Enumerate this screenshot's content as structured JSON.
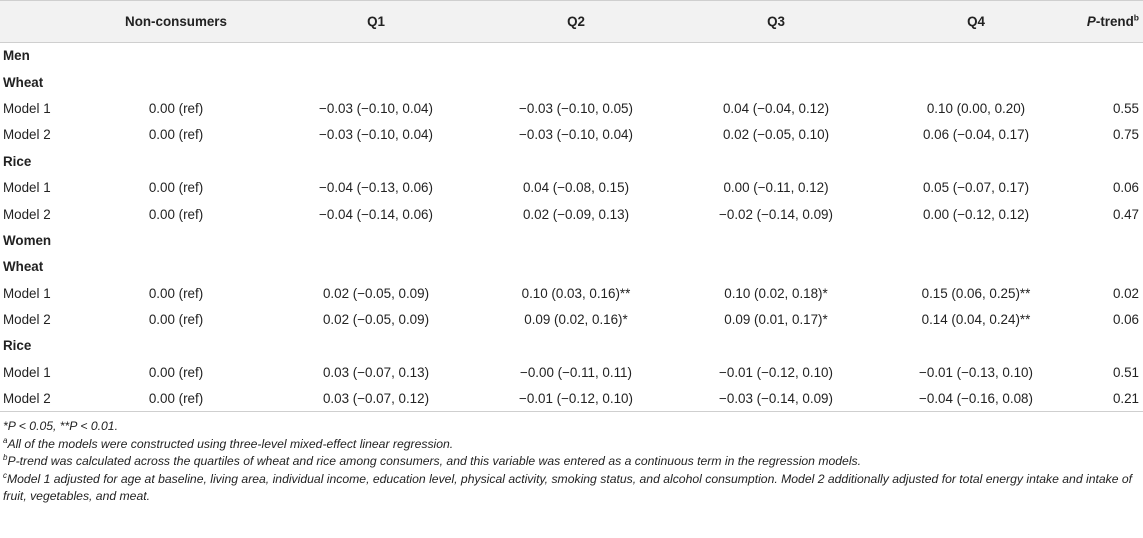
{
  "header": {
    "col0": "",
    "non_consumers": "Non-consumers",
    "q1": "Q1",
    "q2": "Q2",
    "q3": "Q3",
    "q4": "Q4",
    "ptrend_italic": "P",
    "ptrend_rest": "-trend",
    "ptrend_sup": "b"
  },
  "rows": {
    "men": "Men",
    "men_wheat": "Wheat",
    "men_wheat_m1": [
      "Model 1",
      "0.00 (ref)",
      "−0.03 (−0.10, 0.04)",
      "−0.03 (−0.10, 0.05)",
      "0.04 (−0.04, 0.12)",
      "0.10 (0.00, 0.20)",
      "0.55"
    ],
    "men_wheat_m2": [
      "Model 2",
      "0.00 (ref)",
      "−0.03 (−0.10, 0.04)",
      "−0.03 (−0.10, 0.04)",
      "0.02 (−0.05, 0.10)",
      "0.06 (−0.04, 0.17)",
      "0.75"
    ],
    "men_rice": "Rice",
    "men_rice_m1": [
      "Model 1",
      "0.00 (ref)",
      "−0.04 (−0.13, 0.06)",
      "0.04 (−0.08, 0.15)",
      "0.00 (−0.11, 0.12)",
      "0.05 (−0.07, 0.17)",
      "0.06"
    ],
    "men_rice_m2": [
      "Model 2",
      "0.00 (ref)",
      "−0.04 (−0.14, 0.06)",
      "0.02 (−0.09, 0.13)",
      "−0.02 (−0.14, 0.09)",
      "0.00 (−0.12, 0.12)",
      "0.47"
    ],
    "women": "Women",
    "women_wheat": "Wheat",
    "women_wheat_m1": [
      "Model 1",
      "0.00 (ref)",
      "0.02 (−0.05, 0.09)",
      "0.10 (0.03, 0.16)**",
      "0.10 (0.02, 0.18)*",
      "0.15 (0.06, 0.25)**",
      "0.02"
    ],
    "women_wheat_m2": [
      "Model 2",
      "0.00 (ref)",
      "0.02 (−0.05, 0.09)",
      "0.09 (0.02, 0.16)*",
      "0.09 (0.01, 0.17)*",
      "0.14 (0.04, 0.24)**",
      "0.06"
    ],
    "women_rice": "Rice",
    "women_rice_m1": [
      "Model 1",
      "0.00 (ref)",
      "0.03 (−0.07, 0.13)",
      "−0.00 (−0.11, 0.11)",
      "−0.01 (−0.12, 0.10)",
      "−0.01 (−0.13, 0.10)",
      "0.51"
    ],
    "women_rice_m2": [
      "Model 2",
      "0.00 (ref)",
      "0.03 (−0.07, 0.12)",
      "−0.01 (−0.12, 0.10)",
      "−0.03 (−0.14, 0.09)",
      "−0.04 (−0.16, 0.08)",
      "0.21"
    ]
  },
  "notes": {
    "sig": "*P < 0.05, **P < 0.01.",
    "a_sup": "a",
    "a_text": "All of the models were constructed using three-level mixed-effect linear regression.",
    "b_sup": "b",
    "b_text": "P-trend was calculated across the quartiles of wheat and rice among consumers, and this variable was entered as a continuous term in the regression models.",
    "c_sup": "c",
    "c_text": "Model 1 adjusted for age at baseline, living area, individual income, education level, physical activity, smoking status, and alcohol consumption. Model 2 additionally adjusted for total energy intake and intake of fruit, vegetables, and meat."
  }
}
